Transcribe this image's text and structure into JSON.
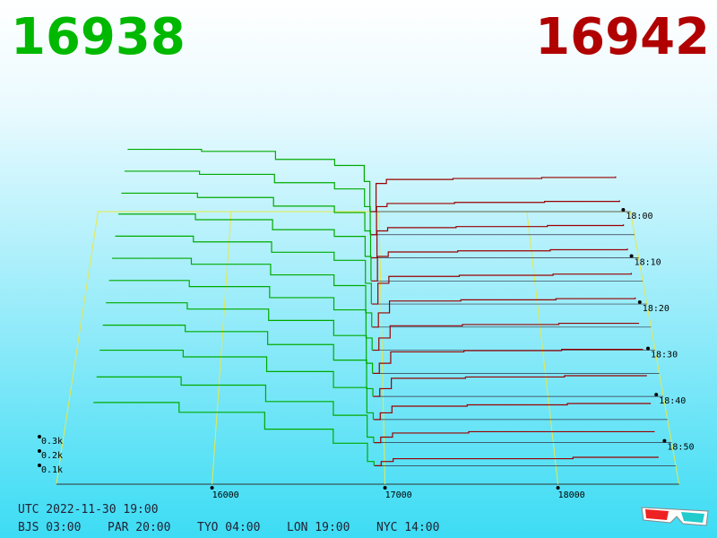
{
  "chart_data": {
    "type": "depth3d",
    "best_bid": 16938,
    "bid_color": "#00b800",
    "bid_line_color": "#00aa00",
    "best_ask": 16942,
    "ask_color": "#b00000",
    "ask_line_color": "#990000",
    "xlim": [
      15100,
      18700
    ],
    "xticks": [
      16000,
      17000,
      18000
    ],
    "zticks": [
      {
        "value": 0.1,
        "label": "0.1k"
      },
      {
        "value": 0.2,
        "label": "0.2k"
      },
      {
        "value": 0.3,
        "label": "0.3k"
      }
    ],
    "time_ticks": [
      "18:00",
      "18:10",
      "18:20",
      "18:30",
      "18:40",
      "18:50"
    ],
    "bid_prices": [
      15300,
      15800,
      16300,
      16700,
      16900
    ],
    "ask_prices": [
      16980,
      17050,
      17500,
      18100,
      18600
    ],
    "snapshots": [
      {
        "time": "18:00",
        "bids": [
          0.62,
          0.6,
          0.52,
          0.46,
          0.3
        ],
        "asks": [
          0.28,
          0.32,
          0.33,
          0.34,
          0.35
        ]
      },
      {
        "time": "18:05",
        "bids": [
          0.61,
          0.58,
          0.5,
          0.44,
          0.27
        ],
        "asks": [
          0.27,
          0.3,
          0.31,
          0.32,
          0.33
        ]
      },
      {
        "time": "18:10",
        "bids": [
          0.6,
          0.56,
          0.48,
          0.42,
          0.25
        ],
        "asks": [
          0.25,
          0.28,
          0.29,
          0.3,
          0.31
        ]
      },
      {
        "time": "18:15",
        "bids": [
          0.6,
          0.55,
          0.46,
          0.4,
          0.22
        ],
        "asks": [
          0.22,
          0.26,
          0.27,
          0.28,
          0.29
        ]
      },
      {
        "time": "18:20",
        "bids": [
          0.59,
          0.54,
          0.45,
          0.38,
          0.18
        ],
        "asks": [
          0.18,
          0.24,
          0.25,
          0.26,
          0.27
        ]
      },
      {
        "time": "18:25",
        "bids": [
          0.58,
          0.53,
          0.44,
          0.35,
          0.12
        ],
        "asks": [
          0.12,
          0.22,
          0.23,
          0.24,
          0.25
        ]
      },
      {
        "time": "18:30",
        "bids": [
          0.57,
          0.52,
          0.43,
          0.33,
          0.1
        ],
        "asks": [
          0.1,
          0.2,
          0.21,
          0.22,
          0.22
        ]
      },
      {
        "time": "18:35",
        "bids": [
          0.56,
          0.51,
          0.42,
          0.3,
          0.08
        ],
        "asks": [
          0.08,
          0.17,
          0.18,
          0.19,
          0.19
        ]
      },
      {
        "time": "18:40",
        "bids": [
          0.55,
          0.5,
          0.4,
          0.28,
          0.06
        ],
        "asks": [
          0.06,
          0.14,
          0.15,
          0.16,
          0.16
        ]
      },
      {
        "time": "18:45",
        "bids": [
          0.52,
          0.47,
          0.36,
          0.24,
          0.05
        ],
        "asks": [
          0.05,
          0.1,
          0.11,
          0.12,
          0.12
        ]
      },
      {
        "time": "18:50",
        "bids": [
          0.48,
          0.42,
          0.3,
          0.2,
          0.04
        ],
        "asks": [
          0.04,
          0.07,
          0.08,
          0.08,
          0.08
        ]
      },
      {
        "time": "18:55",
        "bids": [
          0.45,
          0.38,
          0.26,
          0.16,
          0.03
        ],
        "asks": [
          0.03,
          0.05,
          0.05,
          0.06,
          0.06
        ]
      }
    ]
  },
  "footer": {
    "utc": "UTC 2022-11-30 19:00",
    "clocks": [
      "BJS 03:00",
      "PAR 20:00",
      "TYO 04:00",
      "LON 19:00",
      "NYC 14:00"
    ]
  }
}
